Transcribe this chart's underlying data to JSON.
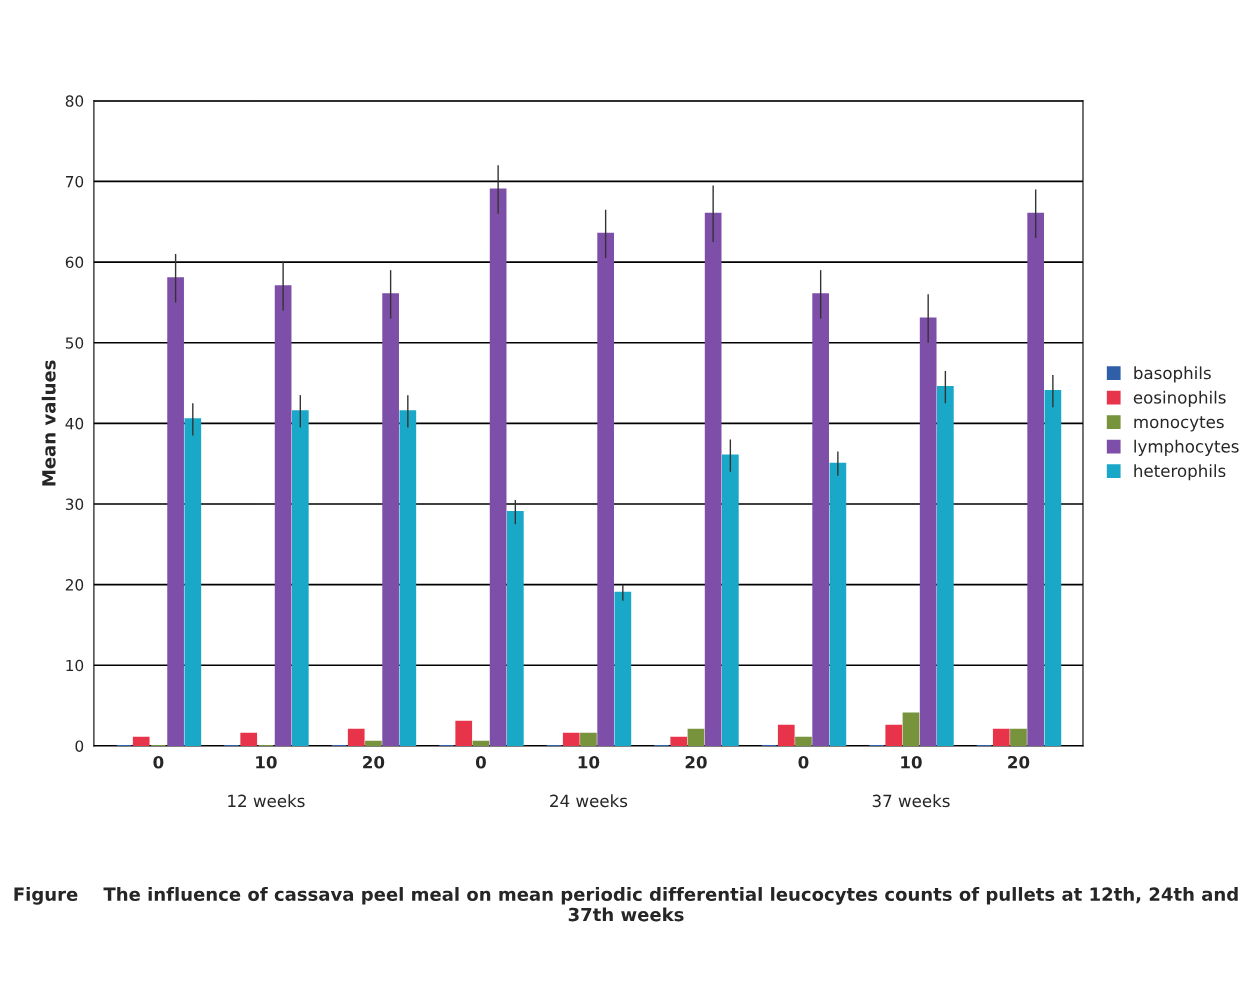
{
  "chart_data": {
    "type": "bar",
    "title": "Figure    The influence of cassava peel meal on mean periodic differential leucocytes counts of pullets at 12th, 24th and 37th weeks",
    "ylabel": "Mean values",
    "categories": [
      "0",
      "10",
      "20",
      "0",
      "10",
      "20",
      "0",
      "10",
      "20"
    ],
    "annotations": [
      "12 weeks",
      "24 weeks",
      "37 weeks"
    ],
    "series": [
      {
        "name": "basophils",
        "color": "#2e5fa8",
        "values": [
          0,
          0,
          0,
          0,
          0,
          0,
          0,
          0,
          0
        ]
      },
      {
        "name": "eosinophils",
        "color": "#e8344a",
        "values": [
          1,
          1.5,
          2,
          3,
          1.5,
          1,
          2.5,
          2.5,
          2
        ]
      },
      {
        "name": "monocytes",
        "color": "#77933c",
        "values": [
          0,
          0,
          0.5,
          0.5,
          1.5,
          2,
          1,
          4,
          2
        ]
      },
      {
        "name": "lymphocytes",
        "color": "#7e4fa8",
        "values": [
          58,
          57,
          56,
          69,
          63.5,
          66,
          56,
          53,
          66
        ],
        "errors": [
          3,
          3,
          3,
          3,
          3,
          3.5,
          3,
          3,
          3
        ]
      },
      {
        "name": "heterophils",
        "color": "#1aa8c8",
        "values": [
          40.5,
          41.5,
          41.5,
          29,
          19,
          36,
          35,
          44.5,
          44
        ],
        "errors": [
          2,
          2,
          2,
          1.5,
          1,
          2,
          1.5,
          2,
          2
        ]
      }
    ],
    "ylim": [
      0,
      80
    ],
    "yticks": [
      0,
      10,
      20,
      30,
      40,
      50,
      60,
      70,
      80
    ],
    "grid": "y",
    "legend": "right"
  }
}
